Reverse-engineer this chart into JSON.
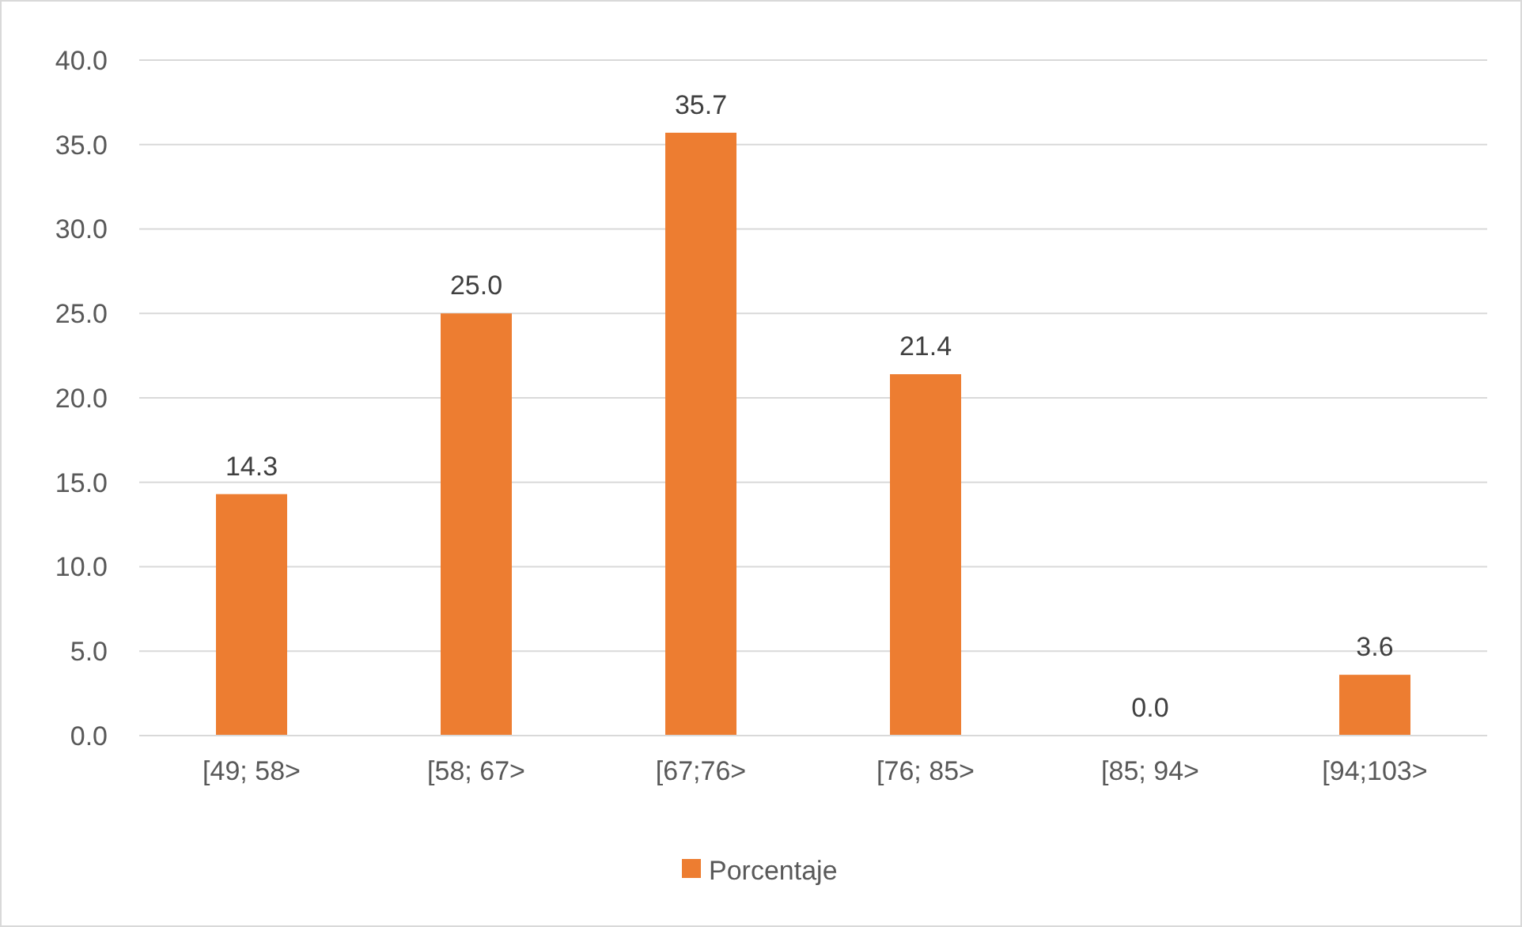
{
  "chart_data": {
    "type": "bar",
    "categories": [
      "[49; 58>",
      "[58; 67>",
      "[67;76>",
      "[76; 85>",
      "[85; 94>",
      "[94;103>"
    ],
    "series": [
      {
        "name": "Porcentaje",
        "color": "#ed7d31",
        "values": [
          14.3,
          25.0,
          35.7,
          21.4,
          0.0,
          3.6
        ],
        "value_labels": [
          "14.3",
          "25.0",
          "35.7",
          "21.4",
          "0.0",
          "3.6"
        ]
      }
    ],
    "ylim": [
      0,
      40
    ],
    "yticks": [
      {
        "value": 0,
        "label": "0.0"
      },
      {
        "value": 5,
        "label": "5.0"
      },
      {
        "value": 10,
        "label": "10.0"
      },
      {
        "value": 15,
        "label": "15.0"
      },
      {
        "value": 20,
        "label": "20.0"
      },
      {
        "value": 25,
        "label": "25.0"
      },
      {
        "value": 30,
        "label": "30.0"
      },
      {
        "value": 35,
        "label": "35.0"
      },
      {
        "value": 40,
        "label": "40.0"
      }
    ],
    "grid": "y",
    "legend": "bottom"
  }
}
